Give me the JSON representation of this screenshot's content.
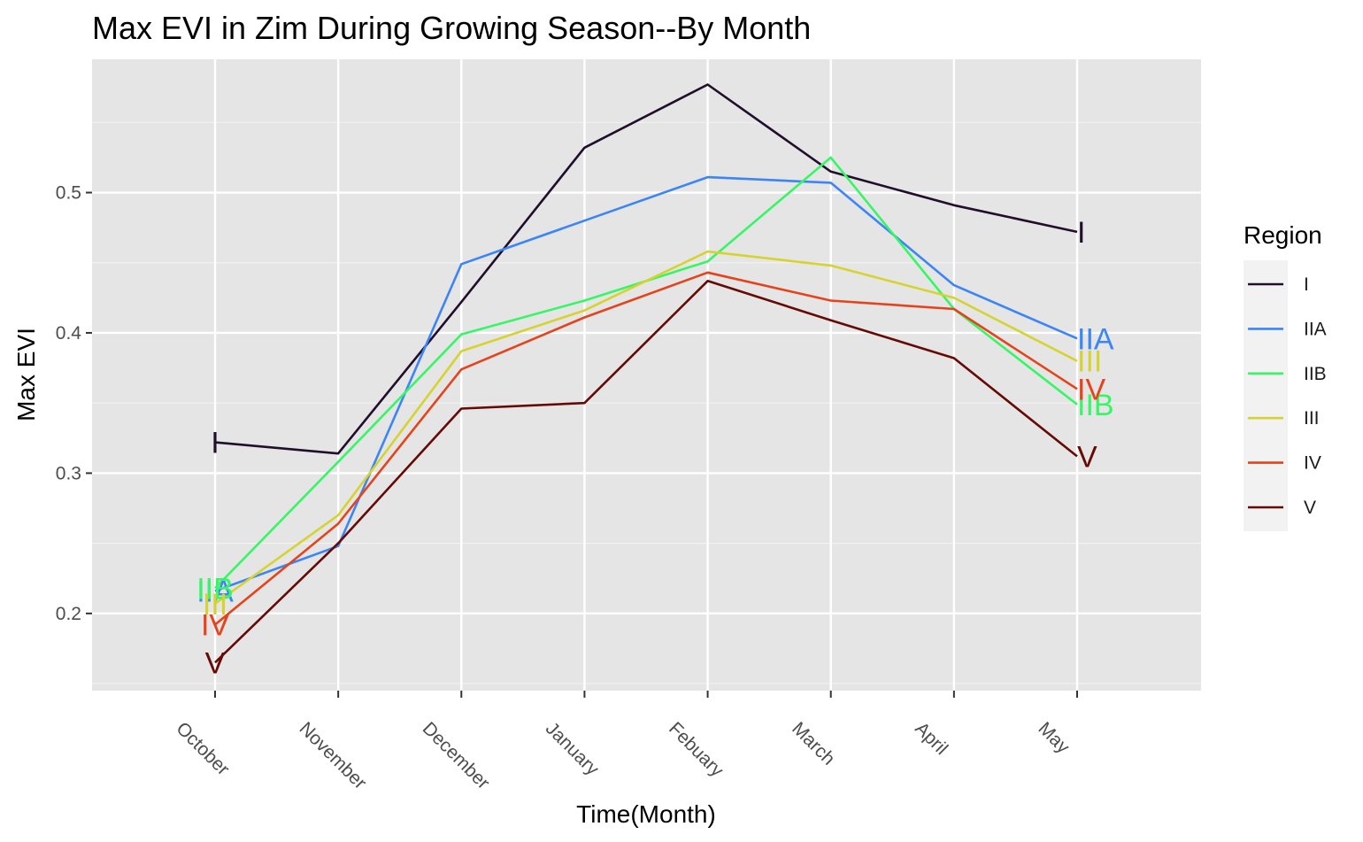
{
  "chart_data": {
    "type": "line",
    "title": "Max EVI in Zim During Growing Season--By Month",
    "xlabel": "Time(Month)",
    "ylabel": "Max EVI",
    "categories": [
      "October",
      "November",
      "December",
      "January",
      "Febuary",
      "March",
      "April",
      "May"
    ],
    "ylim": [
      0.145,
      0.595
    ],
    "yticks": [
      0.2,
      0.3,
      0.4,
      0.5
    ],
    "ytick_labels": [
      "0.2",
      "0.3",
      "0.4",
      "0.5"
    ],
    "grid": true,
    "legend": {
      "title": "Region",
      "position": "right"
    },
    "series": [
      {
        "name": "I",
        "color": "#200e2b",
        "values": [
          0.322,
          0.314,
          0.422,
          0.532,
          0.577,
          0.515,
          0.491,
          0.472
        ]
      },
      {
        "name": "IIA",
        "color": "#3c85f7",
        "values": [
          0.216,
          0.248,
          0.449,
          0.48,
          0.511,
          0.507,
          0.434,
          0.396
        ]
      },
      {
        "name": "IIB",
        "color": "#37f666",
        "values": [
          0.218,
          0.308,
          0.399,
          0.423,
          0.451,
          0.525,
          0.417,
          0.349
        ]
      },
      {
        "name": "III",
        "color": "#d6d331",
        "values": [
          0.207,
          0.27,
          0.387,
          0.416,
          0.458,
          0.448,
          0.425,
          0.38
        ]
      },
      {
        "name": "IV",
        "color": "#e5431c",
        "values": [
          0.192,
          0.264,
          0.374,
          0.411,
          0.443,
          0.423,
          0.417,
          0.36
        ]
      },
      {
        "name": "V",
        "color": "#650a05",
        "values": [
          0.165,
          0.25,
          0.346,
          0.35,
          0.437,
          0.409,
          0.382,
          0.312
        ]
      }
    ]
  }
}
